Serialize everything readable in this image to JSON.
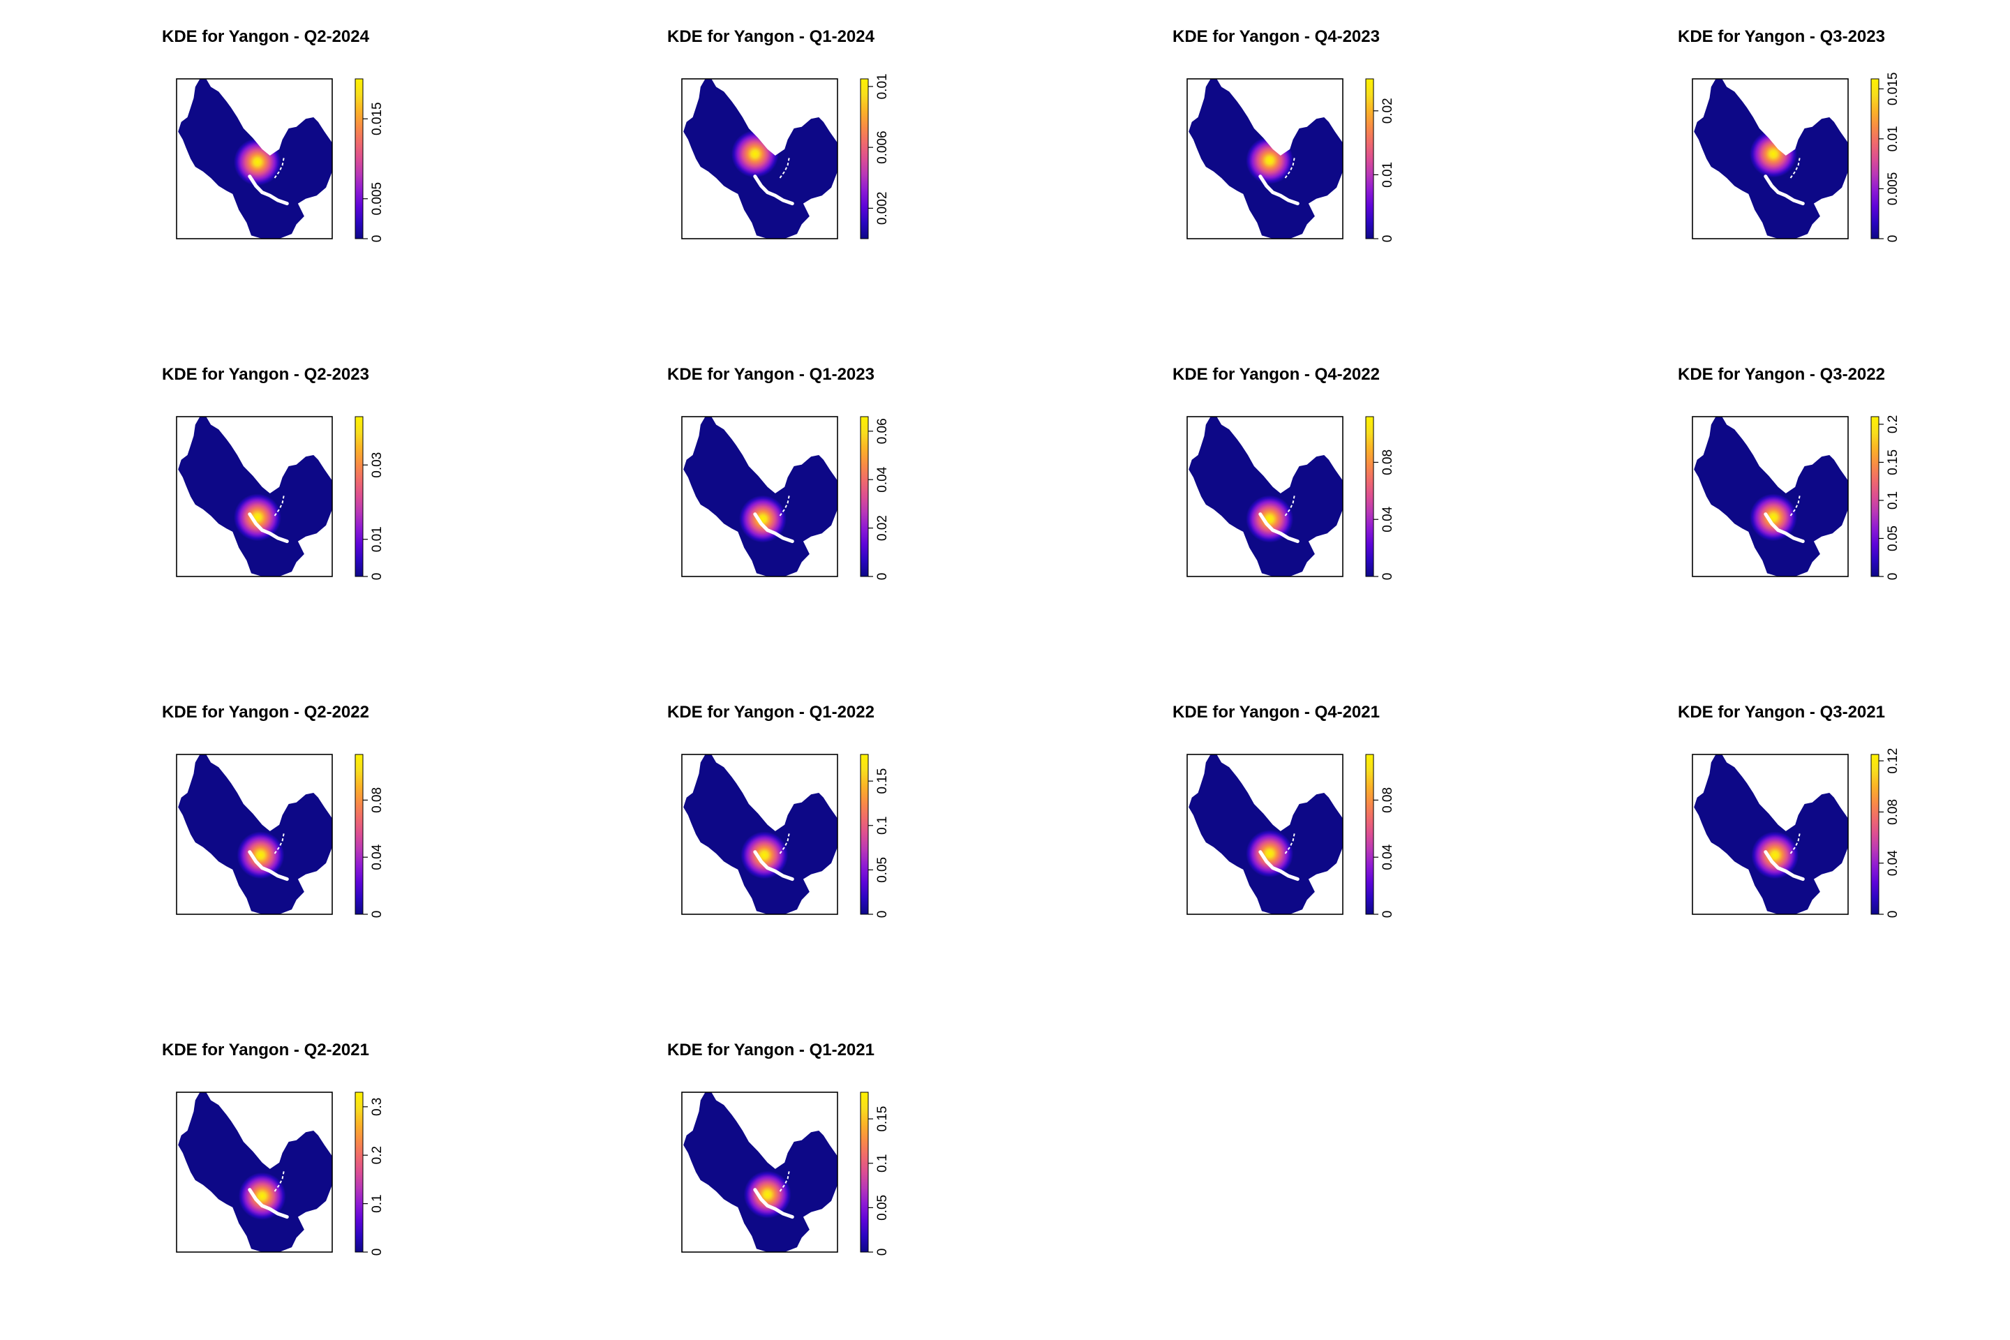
{
  "colors": {
    "background": "#ffffff",
    "frame": "#000000",
    "palette": [
      "#0d0887",
      "#2a06c0",
      "#5d05d8",
      "#8d1ad4",
      "#b837b8",
      "#dc4e93",
      "#f06a6c",
      "#f98c45",
      "#fbb327",
      "#f8de1d",
      "#fff200"
    ]
  },
  "chart_data": [
    {
      "type": "heatmap",
      "title": "KDE for Yangon - Q2-2024",
      "legend": "right",
      "colorbar_ticks": [
        "0",
        "0.005",
        "0.015"
      ],
      "colorbar_tick_values": [
        0,
        0.005,
        0.015
      ],
      "colorbar_range": [
        0,
        0.02
      ],
      "peak": [
        0.52,
        0.52
      ]
    },
    {
      "type": "heatmap",
      "title": "KDE for Yangon - Q1-2024",
      "legend": "right",
      "colorbar_ticks": [
        "0.002",
        "0.006",
        "0.01"
      ],
      "colorbar_tick_values": [
        0.002,
        0.006,
        0.01
      ],
      "colorbar_range": [
        0,
        0.0105
      ],
      "peak": [
        0.47,
        0.47
      ]
    },
    {
      "type": "heatmap",
      "title": "KDE for Yangon - Q4-2023",
      "legend": "right",
      "colorbar_ticks": [
        "0",
        "0.01",
        "0.02"
      ],
      "colorbar_tick_values": [
        0,
        0.01,
        0.02
      ],
      "colorbar_range": [
        0,
        0.025
      ],
      "peak": [
        0.53,
        0.51
      ]
    },
    {
      "type": "heatmap",
      "title": "KDE for Yangon - Q3-2023",
      "legend": "right",
      "colorbar_ticks": [
        "0",
        "0.005",
        "0.01",
        "0.015"
      ],
      "colorbar_tick_values": [
        0,
        0.005,
        0.01,
        0.015
      ],
      "colorbar_range": [
        0,
        0.016
      ],
      "peak": [
        0.52,
        0.47
      ]
    },
    {
      "type": "heatmap",
      "title": "KDE for Yangon - Q2-2023",
      "legend": "right",
      "colorbar_ticks": [
        "0",
        "0.01",
        "0.03"
      ],
      "colorbar_tick_values": [
        0,
        0.01,
        0.03
      ],
      "colorbar_range": [
        0,
        0.043
      ],
      "peak": [
        0.52,
        0.63
      ]
    },
    {
      "type": "heatmap",
      "title": "KDE for Yangon - Q1-2023",
      "legend": "right",
      "colorbar_ticks": [
        "0",
        "0.02",
        "0.04",
        "0.06"
      ],
      "colorbar_tick_values": [
        0,
        0.02,
        0.04,
        0.06
      ],
      "colorbar_range": [
        0,
        0.066
      ],
      "peak": [
        0.52,
        0.64
      ]
    },
    {
      "type": "heatmap",
      "title": "KDE for Yangon - Q4-2022",
      "legend": "right",
      "colorbar_ticks": [
        "0",
        "0.04",
        "0.08"
      ],
      "colorbar_tick_values": [
        0,
        0.04,
        0.08
      ],
      "colorbar_range": [
        0,
        0.112
      ],
      "peak": [
        0.53,
        0.64
      ]
    },
    {
      "type": "heatmap",
      "title": "KDE for Yangon - Q3-2022",
      "legend": "right",
      "colorbar_ticks": [
        "0",
        "0.05",
        "0.1",
        "0.15",
        "0.2"
      ],
      "colorbar_tick_values": [
        0,
        0.05,
        0.1,
        0.15,
        0.2
      ],
      "colorbar_range": [
        0,
        0.21
      ],
      "peak": [
        0.52,
        0.63
      ]
    },
    {
      "type": "heatmap",
      "title": "KDE for Yangon - Q2-2022",
      "legend": "right",
      "colorbar_ticks": [
        "0",
        "0.04",
        "0.08"
      ],
      "colorbar_tick_values": [
        0,
        0.04,
        0.08
      ],
      "colorbar_range": [
        0,
        0.112
      ],
      "peak": [
        0.54,
        0.63
      ]
    },
    {
      "type": "heatmap",
      "title": "KDE for Yangon - Q1-2022",
      "legend": "right",
      "colorbar_ticks": [
        "0",
        "0.05",
        "0.1",
        "0.15"
      ],
      "colorbar_tick_values": [
        0,
        0.05,
        0.1,
        0.15
      ],
      "colorbar_range": [
        0,
        0.18
      ],
      "peak": [
        0.53,
        0.63
      ]
    },
    {
      "type": "heatmap",
      "title": "KDE for Yangon - Q4-2021",
      "legend": "right",
      "colorbar_ticks": [
        "0",
        "0.04",
        "0.08"
      ],
      "colorbar_tick_values": [
        0,
        0.04,
        0.08
      ],
      "colorbar_range": [
        0,
        0.112
      ],
      "peak": [
        0.53,
        0.62
      ]
    },
    {
      "type": "heatmap",
      "title": "KDE for Yangon - Q3-2021",
      "legend": "right",
      "colorbar_ticks": [
        "0",
        "0.04",
        "0.08",
        "0.12"
      ],
      "colorbar_tick_values": [
        0,
        0.04,
        0.08,
        0.12
      ],
      "colorbar_range": [
        0,
        0.125
      ],
      "peak": [
        0.53,
        0.63
      ]
    },
    {
      "type": "heatmap",
      "title": "KDE for Yangon - Q2-2021",
      "legend": "right",
      "colorbar_ticks": [
        "0",
        "0.1",
        "0.2",
        "0.3"
      ],
      "colorbar_tick_values": [
        0,
        0.1,
        0.2,
        0.3
      ],
      "colorbar_range": [
        0,
        0.33
      ],
      "peak": [
        0.55,
        0.65
      ]
    },
    {
      "type": "heatmap",
      "title": "KDE for Yangon - Q1-2021",
      "legend": "right",
      "colorbar_ticks": [
        "0",
        "0.05",
        "0.1",
        "0.15"
      ],
      "colorbar_tick_values": [
        0,
        0.05,
        0.1,
        0.15
      ],
      "colorbar_range": [
        0,
        0.18
      ],
      "peak": [
        0.55,
        0.64
      ]
    }
  ]
}
